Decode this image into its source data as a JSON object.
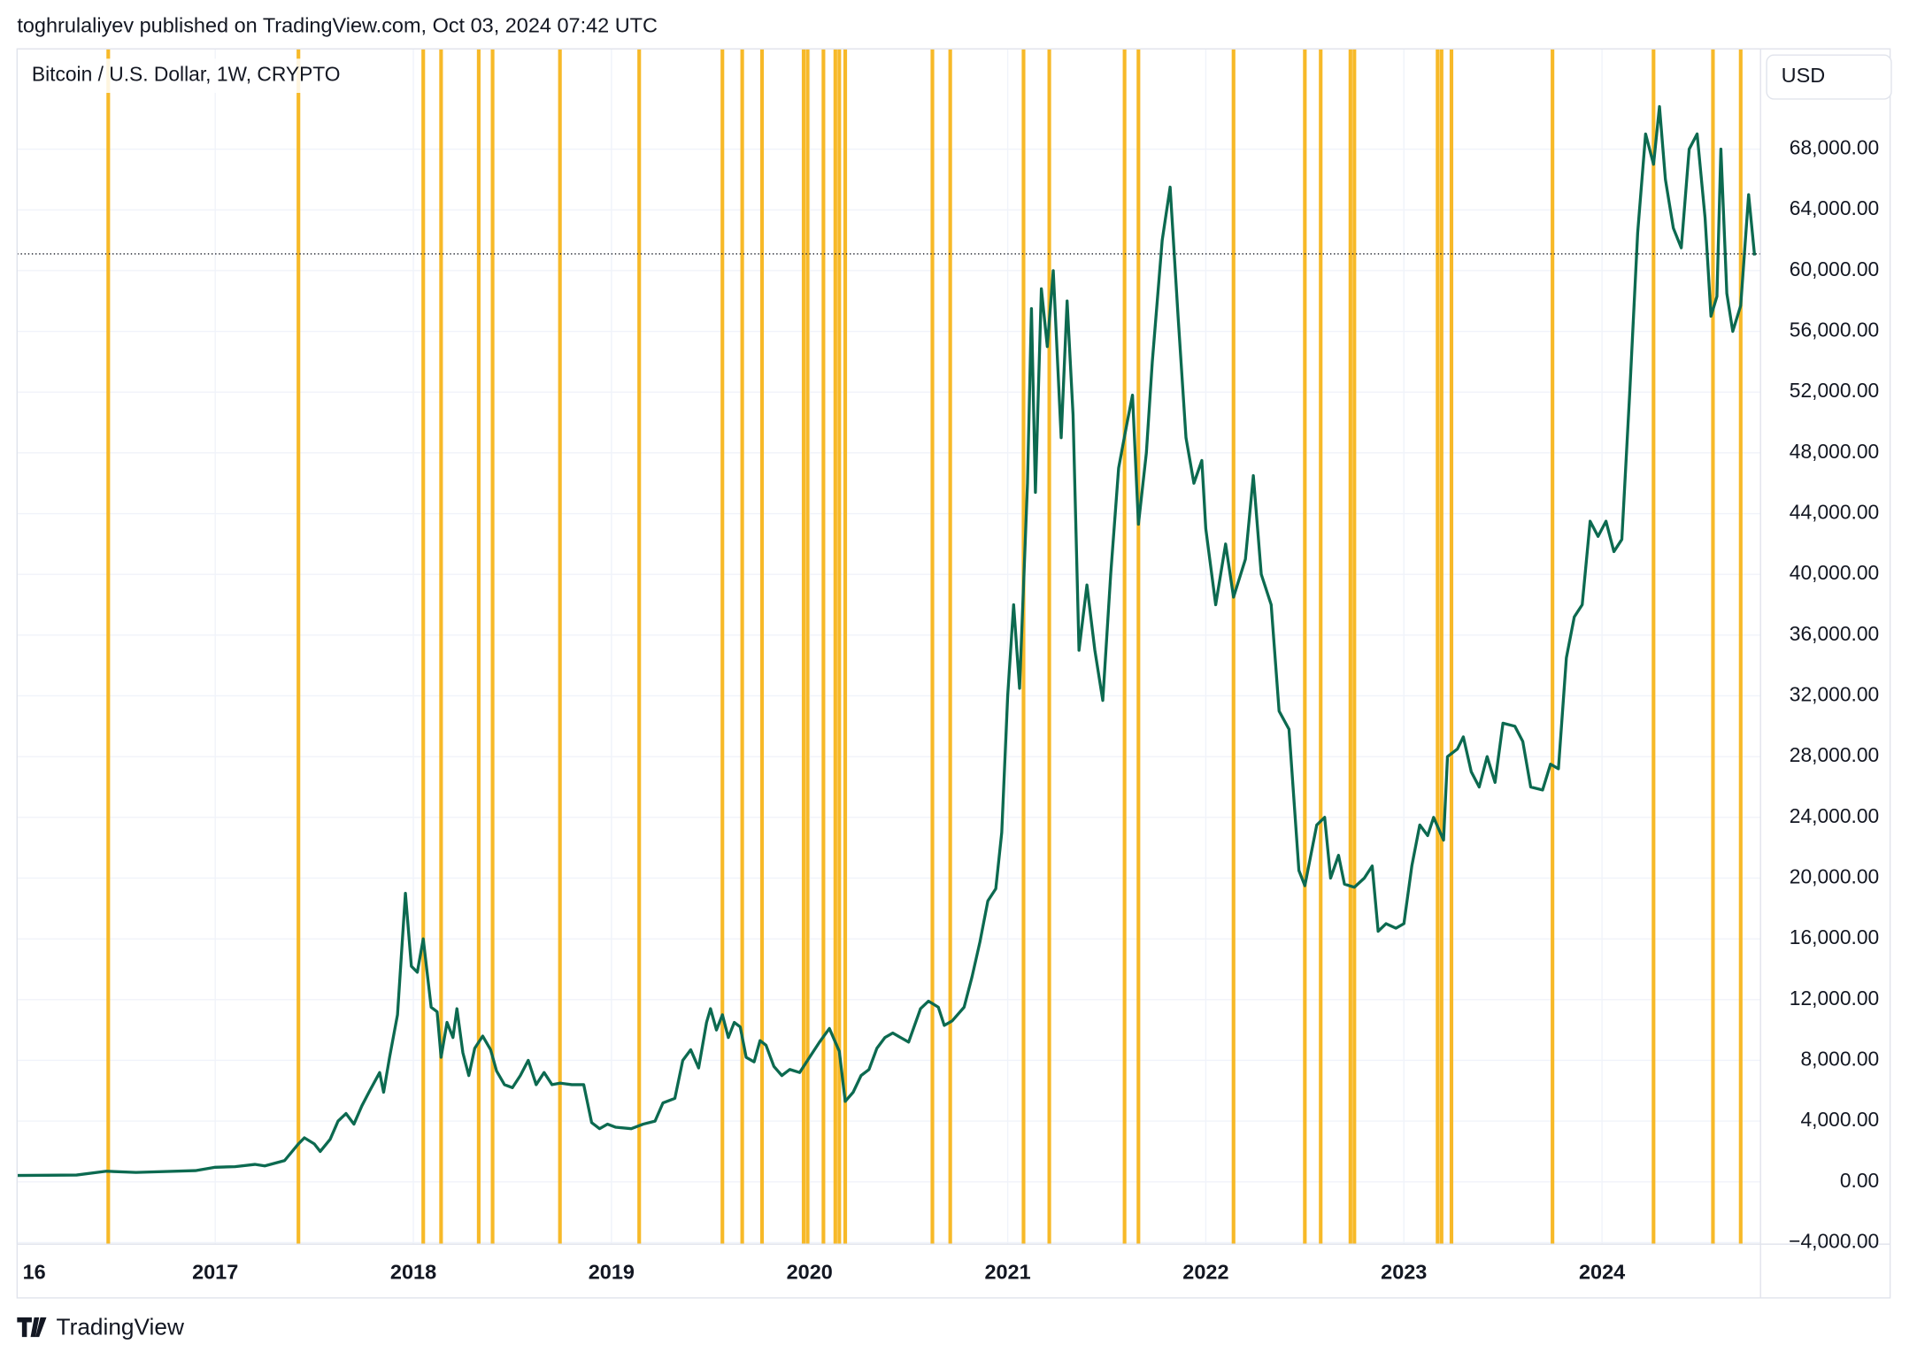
{
  "publisher_line": "toghrulaliyev published on TradingView.com, Oct 03, 2024 07:42 UTC",
  "brand": "TradingView",
  "chart_data": {
    "type": "line",
    "title": "Bitcoin / U.S. Dollar, 1W, CRYPTO",
    "y_axis_label": "USD",
    "color": "#0c6a50",
    "highlight_color": "#f7b928",
    "grid": true,
    "xlim": [
      2016.0,
      2024.8
    ],
    "ylim": [
      -4100,
      74600
    ],
    "xticks": [
      {
        "value": 2016,
        "label": "16"
      },
      2017,
      2018,
      2019,
      2020,
      2021,
      2022,
      2023,
      2024
    ],
    "yticks": [
      {
        "value": -4000,
        "label": "−4,000.00"
      },
      {
        "value": 0,
        "label": "0.00"
      },
      {
        "value": 4000,
        "label": "4,000.00"
      },
      {
        "value": 8000,
        "label": "8,000.00"
      },
      {
        "value": 12000,
        "label": "12,000.00"
      },
      {
        "value": 16000,
        "label": "16,000.00"
      },
      {
        "value": 20000,
        "label": "20,000.00"
      },
      {
        "value": 24000,
        "label": "24,000.00"
      },
      {
        "value": 28000,
        "label": "28,000.00"
      },
      {
        "value": 32000,
        "label": "32,000.00"
      },
      {
        "value": 36000,
        "label": "36,000.00"
      },
      {
        "value": 40000,
        "label": "40,000.00"
      },
      {
        "value": 44000,
        "label": "44,000.00"
      },
      {
        "value": 48000,
        "label": "48,000.00"
      },
      {
        "value": 52000,
        "label": "52,000.00"
      },
      {
        "value": 56000,
        "label": "56,000.00"
      },
      {
        "value": 60000,
        "label": "60,000.00"
      },
      {
        "value": 64000,
        "label": "64,000.00"
      },
      {
        "value": 68000,
        "label": "68,000.00"
      }
    ],
    "price_line": 61100,
    "highlights": [
      2016.46,
      2017.42,
      2018.05,
      2018.14,
      2018.33,
      2018.4,
      2018.74,
      2019.14,
      2019.56,
      2019.66,
      2019.76,
      2019.97,
      2019.99,
      2020.07,
      2020.13,
      2020.15,
      2020.18,
      2020.62,
      2020.71,
      2021.08,
      2021.21,
      2021.59,
      2021.66,
      2022.14,
      2022.5,
      2022.58,
      2022.73,
      2022.75,
      2023.17,
      2023.19,
      2023.24,
      2023.75,
      2024.26,
      2024.56,
      2024.7
    ],
    "x": [
      2016.0,
      2016.3,
      2016.45,
      2016.6,
      2016.9,
      2017.0,
      2017.1,
      2017.2,
      2017.25,
      2017.35,
      2017.42,
      2017.45,
      2017.5,
      2017.53,
      2017.58,
      2017.62,
      2017.66,
      2017.7,
      2017.74,
      2017.78,
      2017.83,
      2017.85,
      2017.88,
      2017.92,
      2017.96,
      2017.99,
      2018.02,
      2018.05,
      2018.09,
      2018.12,
      2018.14,
      2018.17,
      2018.2,
      2018.22,
      2018.25,
      2018.28,
      2018.31,
      2018.35,
      2018.39,
      2018.42,
      2018.46,
      2018.5,
      2018.54,
      2018.58,
      2018.62,
      2018.66,
      2018.7,
      2018.74,
      2018.8,
      2018.86,
      2018.9,
      2018.94,
      2018.98,
      2019.02,
      2019.1,
      2019.16,
      2019.22,
      2019.26,
      2019.32,
      2019.36,
      2019.4,
      2019.44,
      2019.48,
      2019.5,
      2019.53,
      2019.56,
      2019.59,
      2019.62,
      2019.65,
      2019.68,
      2019.72,
      2019.75,
      2019.78,
      2019.82,
      2019.86,
      2019.9,
      2019.95,
      2020.0,
      2020.05,
      2020.1,
      2020.15,
      2020.18,
      2020.22,
      2020.26,
      2020.3,
      2020.34,
      2020.38,
      2020.42,
      2020.5,
      2020.56,
      2020.6,
      2020.65,
      2020.68,
      2020.72,
      2020.78,
      2020.82,
      2020.86,
      2020.9,
      2020.94,
      2020.97,
      2021.0,
      2021.03,
      2021.06,
      2021.1,
      2021.12,
      2021.14,
      2021.17,
      2021.2,
      2021.23,
      2021.27,
      2021.3,
      2021.33,
      2021.36,
      2021.4,
      2021.44,
      2021.48,
      2021.52,
      2021.56,
      2021.6,
      2021.63,
      2021.66,
      2021.7,
      2021.73,
      2021.78,
      2021.82,
      2021.86,
      2021.9,
      2021.94,
      2021.98,
      2022.0,
      2022.05,
      2022.1,
      2022.14,
      2022.2,
      2022.24,
      2022.28,
      2022.33,
      2022.37,
      2022.42,
      2022.47,
      2022.5,
      2022.56,
      2022.6,
      2022.63,
      2022.67,
      2022.7,
      2022.75,
      2022.8,
      2022.84,
      2022.87,
      2022.91,
      2022.96,
      2023.0,
      2023.04,
      2023.08,
      2023.12,
      2023.15,
      2023.2,
      2023.22,
      2023.27,
      2023.3,
      2023.34,
      2023.38,
      2023.42,
      2023.46,
      2023.5,
      2023.56,
      2023.6,
      2023.64,
      2023.7,
      2023.74,
      2023.78,
      2023.82,
      2023.86,
      2023.9,
      2023.94,
      2023.98,
      2024.02,
      2024.06,
      2024.1,
      2024.14,
      2024.18,
      2024.22,
      2024.26,
      2024.29,
      2024.32,
      2024.36,
      2024.4,
      2024.44,
      2024.48,
      2024.52,
      2024.55,
      2024.58,
      2024.6,
      2024.63,
      2024.66,
      2024.7,
      2024.74,
      2024.77
    ],
    "values": [
      420,
      450,
      700,
      620,
      740,
      960,
      1000,
      1150,
      1050,
      1400,
      2500,
      2900,
      2500,
      2000,
      2800,
      4000,
      4500,
      3800,
      5000,
      6000,
      7200,
      5900,
      8200,
      11000,
      19000,
      14200,
      13800,
      16000,
      11500,
      11200,
      8200,
      10500,
      9500,
      11400,
      8500,
      7000,
      8800,
      9600,
      8700,
      7300,
      6400,
      6200,
      7000,
      8000,
      6400,
      7200,
      6400,
      6500,
      6400,
      6400,
      3900,
      3500,
      3800,
      3600,
      3500,
      3800,
      4000,
      5200,
      5500,
      8000,
      8700,
      7500,
      10500,
      11400,
      10000,
      11000,
      9500,
      10500,
      10200,
      8200,
      7900,
      9300,
      9000,
      7600,
      7000,
      7400,
      7200,
      8200,
      9200,
      10100,
      8600,
      5300,
      5900,
      7000,
      7400,
      8800,
      9500,
      9800,
      9200,
      11400,
      11900,
      11500,
      10300,
      10600,
      11500,
      13500,
      15800,
      18500,
      19300,
      23000,
      32000,
      38000,
      32500,
      46000,
      57500,
      45400,
      58800,
      55000,
      60000,
      49000,
      58000,
      50500,
      35000,
      39300,
      35000,
      31700,
      40000,
      47000,
      49800,
      51800,
      43300,
      48000,
      54000,
      62000,
      65500,
      57000,
      49000,
      46000,
      47500,
      43000,
      38000,
      42000,
      38500,
      41000,
      46500,
      40000,
      38000,
      31000,
      29800,
      20500,
      19500,
      23500,
      24000,
      20000,
      21500,
      19600,
      19400,
      20000,
      20800,
      16500,
      17000,
      16700,
      17000,
      20800,
      23500,
      22800,
      24000,
      22500,
      28000,
      28500,
      29300,
      27000,
      26000,
      28000,
      26300,
      30200,
      30000,
      29000,
      26000,
      25800,
      27500,
      27200,
      34500,
      37200,
      38000,
      43500,
      42500,
      43500,
      41500,
      42300,
      52000,
      62500,
      69000,
      67000,
      70800,
      66000,
      62800,
      61500,
      68000,
      69000,
      63500,
      57000,
      58300,
      68000,
      58500,
      56000,
      57700,
      65000,
      61000
    ]
  }
}
